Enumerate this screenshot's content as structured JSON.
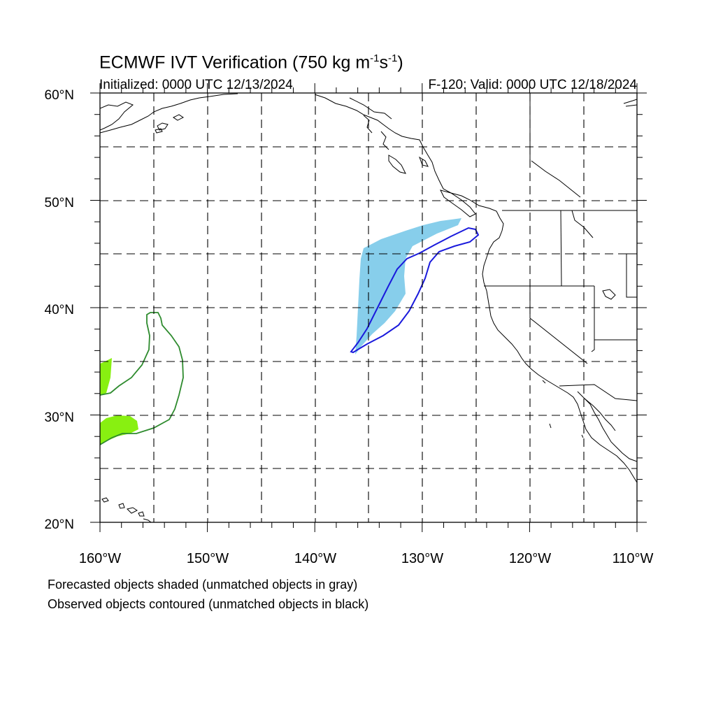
{
  "title": {
    "prefix": "ECMWF IVT Verification (750 kg m",
    "sup1": "-1",
    "mid": "s",
    "sup2": "-1",
    "suffix": ")"
  },
  "subtitle_left": "Initialized: 0000 UTC 12/13/2024",
  "subtitle_right": "F-120: Valid: 0000 UTC 12/18/2024",
  "lat_labels": [
    "60°N",
    "50°N",
    "40°N",
    "30°N",
    "20°N"
  ],
  "lon_labels": [
    "160°W",
    "150°W",
    "140°W",
    "130°W",
    "120°W",
    "110°W"
  ],
  "notes": {
    "forecast": "Forecasted objects shaded (unmatched objects in gray)",
    "observed": "Observed objects contoured (unmatched objects in black)"
  },
  "colors": {
    "forecast_blue": "#87ceeb",
    "observed_blue": "#1a1adc",
    "forecast_green": "#88f011",
    "observed_green": "#2e8b2e",
    "coastline": "#000000",
    "grid": "#000000"
  }
}
